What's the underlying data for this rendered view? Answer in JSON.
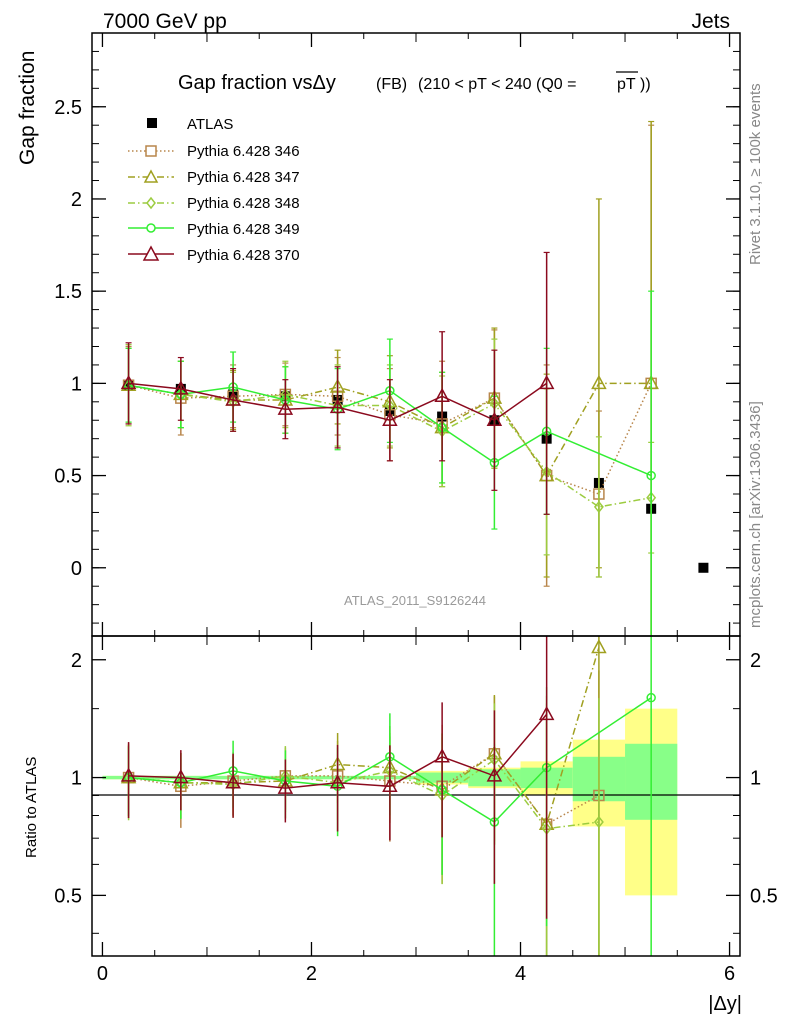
{
  "header": {
    "left": "7000 GeV pp",
    "right": "Jets"
  },
  "side_labels": {
    "rivet": "Rivet 3.1.10, ≥ 100k events",
    "mcplots": "mcplots.cern.ch [arXiv:1306.3436]"
  },
  "watermark": "ATLAS_2011_S9126244",
  "title": {
    "main": "Gap fraction vsΔy",
    "fb": "(FB)",
    "cut": "(210 < pT < 240 (Q0 =",
    "q0": "pT",
    "close": "))"
  },
  "colors": {
    "atlas": "#000000",
    "p346": "#b8864b",
    "p347": "#a0a020",
    "p348": "#9ccc40",
    "p349": "#33ee33",
    "p370": "#8b0a1e",
    "band_outer": "#ffff88",
    "band_inner": "#88ff88"
  },
  "chart_data": [
    {
      "type": "scatter",
      "ylabel": "Gap fraction",
      "xlabel": "|Δy|",
      "xlim": [
        -0.1,
        6.1
      ],
      "ylim": [
        -0.37,
        2.9
      ],
      "yticks": [
        "0",
        "0.5",
        "1",
        "1.5",
        "2",
        "2.5"
      ],
      "xticks": [
        "0",
        "2",
        "4",
        "6"
      ],
      "legend_position": "top-left",
      "series": [
        {
          "name": "ATLAS",
          "marker": "square-filled",
          "x": [
            0.25,
            0.75,
            1.25,
            1.75,
            2.25,
            2.75,
            3.25,
            3.75,
            4.25,
            4.75,
            5.25,
            5.75
          ],
          "y": [
            0.99,
            0.97,
            0.94,
            0.93,
            0.91,
            0.85,
            0.82,
            0.8,
            0.7,
            0.46,
            0.32,
            0.0
          ]
        },
        {
          "name": "Pythia 6.428 346",
          "marker": "square-open",
          "style": "dotted",
          "x": [
            0.25,
            0.75,
            1.25,
            1.75,
            2.25,
            2.75,
            3.25,
            3.75,
            4.25,
            4.75,
            5.25
          ],
          "y": [
            0.99,
            0.92,
            0.93,
            0.94,
            0.93,
            0.83,
            0.78,
            0.92,
            0.5,
            0.4,
            1.0
          ],
          "err": [
            0.21,
            0.2,
            0.17,
            0.17,
            0.21,
            0.25,
            0.34,
            0.37,
            0.6,
            0.45,
            1.4
          ]
        },
        {
          "name": "Pythia 6.428 347",
          "marker": "triangle-open",
          "style": "dash-dot",
          "x": [
            0.25,
            0.75,
            1.25,
            1.75,
            2.25,
            2.75,
            3.25,
            3.75,
            4.25,
            4.75,
            5.25
          ],
          "y": [
            0.99,
            0.94,
            0.91,
            0.91,
            0.98,
            0.9,
            0.76,
            0.92,
            0.5,
            1.0,
            1.0
          ],
          "err": [
            0.2,
            0.18,
            0.16,
            0.18,
            0.2,
            0.25,
            0.3,
            0.38,
            0.55,
            1.0,
            1.42
          ]
        },
        {
          "name": "Pythia 6.428 348",
          "marker": "diamond-open",
          "style": "dash-dot",
          "x": [
            0.25,
            0.75,
            1.25,
            1.75,
            2.25,
            2.75,
            3.25,
            3.75,
            4.25,
            4.75,
            5.25
          ],
          "y": [
            0.99,
            0.94,
            0.9,
            0.94,
            0.88,
            0.88,
            0.74,
            0.89,
            0.52,
            0.33,
            0.38
          ],
          "err": [
            0.22,
            0.18,
            0.16,
            0.18,
            0.22,
            0.22,
            0.3,
            0.35,
            0.45,
            0.38,
            0.3
          ]
        },
        {
          "name": "Pythia 6.428 349",
          "marker": "circle-open",
          "style": "solid",
          "x": [
            0.25,
            0.75,
            1.25,
            1.75,
            2.25,
            2.75,
            3.25,
            3.75,
            4.25,
            5.25
          ],
          "y": [
            0.99,
            0.94,
            0.98,
            0.91,
            0.86,
            0.96,
            0.76,
            0.57,
            0.74,
            0.5
          ],
          "err": [
            0.2,
            0.18,
            0.19,
            0.18,
            0.22,
            0.28,
            0.3,
            0.36,
            0.45,
            1.0
          ]
        },
        {
          "name": "Pythia 6.428 370",
          "marker": "triangle-open",
          "style": "solid",
          "x": [
            0.25,
            0.75,
            1.25,
            1.75,
            2.25,
            2.75,
            3.25,
            3.75,
            4.25
          ],
          "y": [
            1.0,
            0.97,
            0.91,
            0.86,
            0.87,
            0.8,
            0.93,
            0.8,
            1.0
          ],
          "err": [
            0.22,
            0.17,
            0.17,
            0.16,
            0.22,
            0.22,
            0.35,
            0.38,
            0.71
          ]
        }
      ]
    },
    {
      "type": "line",
      "ylabel": "Ratio to ATLAS",
      "xlabel": "|Δy|",
      "xlim": [
        -0.1,
        6.1
      ],
      "ylim": [
        0.35,
        2.3
      ],
      "yticks": [
        "0.5",
        "1",
        "2"
      ],
      "xticks": [
        "0",
        "2",
        "4",
        "6"
      ],
      "band": {
        "x_edges": [
          0.0,
          0.5,
          1.0,
          1.5,
          2.0,
          2.5,
          3.0,
          3.5,
          4.0,
          4.5,
          5.0,
          5.5
        ],
        "outer": [
          0.01,
          0.01,
          0.01,
          0.01,
          0.01,
          0.01,
          0.04,
          0.06,
          0.1,
          0.25,
          0.5
        ],
        "inner": [
          0.01,
          0.01,
          0.01,
          0.01,
          0.01,
          0.01,
          0.03,
          0.05,
          0.06,
          0.13,
          0.22
        ]
      },
      "series": [
        {
          "name": "Pythia 6.428 346",
          "x": [
            0.25,
            0.75,
            1.25,
            1.75,
            2.25,
            2.75,
            3.25,
            3.75,
            4.25,
            4.75
          ],
          "y": [
            1.0,
            0.95,
            0.98,
            1.01,
            1.01,
            0.98,
            0.95,
            1.15,
            0.76,
            0.9
          ]
        },
        {
          "name": "Pythia 6.428 347",
          "x": [
            0.25,
            0.75,
            1.25,
            1.75,
            2.25,
            2.75,
            3.25,
            3.75,
            4.25,
            4.75
          ],
          "y": [
            1.0,
            0.97,
            0.97,
            0.98,
            1.08,
            1.06,
            0.93,
            1.15,
            0.76,
            2.15
          ]
        },
        {
          "name": "Pythia 6.428 348",
          "x": [
            0.25,
            0.75,
            1.25,
            1.75,
            2.25,
            2.75,
            3.25,
            3.75,
            4.25,
            4.75
          ],
          "y": [
            1.0,
            0.97,
            0.96,
            1.01,
            0.97,
            1.04,
            0.9,
            1.11,
            0.74,
            0.77
          ]
        },
        {
          "name": "Pythia 6.428 349",
          "x": [
            0.25,
            0.75,
            1.25,
            1.75,
            2.25,
            2.75,
            3.25,
            3.75,
            4.25,
            5.25
          ],
          "y": [
            1.0,
            0.97,
            1.04,
            0.98,
            0.95,
            1.13,
            0.93,
            0.77,
            1.06,
            1.6
          ]
        },
        {
          "name": "Pythia 6.428 370",
          "x": [
            0.25,
            0.75,
            1.25,
            1.75,
            2.25,
            2.75,
            3.25,
            3.75,
            4.25
          ],
          "y": [
            1.01,
            1.0,
            0.97,
            0.94,
            0.97,
            0.95,
            1.13,
            1.01,
            1.45
          ]
        }
      ]
    }
  ]
}
